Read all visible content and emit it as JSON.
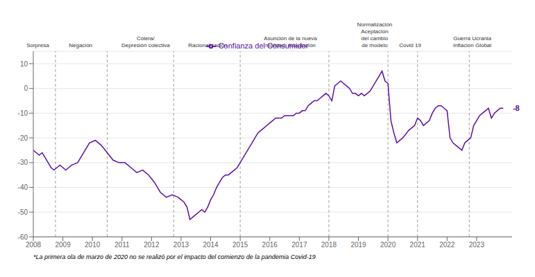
{
  "chart_data": {
    "type": "line",
    "x": [
      2008.0,
      2008.1,
      2008.2,
      2008.3,
      2008.4,
      2008.5,
      2008.6,
      2008.7,
      2008.8,
      2008.9,
      2009.0,
      2009.1,
      2009.2,
      2009.3,
      2009.5,
      2009.7,
      2009.9,
      2010.1,
      2010.3,
      2010.5,
      2010.7,
      2010.9,
      2011.1,
      2011.3,
      2011.5,
      2011.7,
      2011.9,
      2012.1,
      2012.3,
      2012.5,
      2012.7,
      2012.9,
      2013.0,
      2013.1,
      2013.2,
      2013.3,
      2013.4,
      2013.5,
      2013.6,
      2013.7,
      2013.8,
      2013.9,
      2014.0,
      2014.1,
      2014.2,
      2014.3,
      2014.4,
      2014.5,
      2014.6,
      2014.7,
      2014.8,
      2014.9,
      2015.0,
      2015.1,
      2015.2,
      2015.3,
      2015.4,
      2015.5,
      2015.6,
      2015.7,
      2015.8,
      2015.9,
      2016.0,
      2016.1,
      2016.2,
      2016.3,
      2016.4,
      2016.5,
      2016.6,
      2016.7,
      2016.8,
      2016.9,
      2017.0,
      2017.1,
      2017.2,
      2017.3,
      2017.4,
      2017.5,
      2017.6,
      2017.7,
      2017.8,
      2017.9,
      2018.0,
      2018.1,
      2018.2,
      2018.3,
      2018.4,
      2018.5,
      2018.6,
      2018.7,
      2018.8,
      2018.9,
      2019.0,
      2019.1,
      2019.2,
      2019.3,
      2019.4,
      2019.5,
      2019.6,
      2019.7,
      2019.8,
      2019.9,
      2020.0,
      2020.1,
      2020.2,
      2020.3,
      2020.5,
      2020.7,
      2020.9,
      2021.0,
      2021.1,
      2021.2,
      2021.3,
      2021.4,
      2021.5,
      2021.6,
      2021.7,
      2021.8,
      2021.9,
      2022.0,
      2022.1,
      2022.2,
      2022.3,
      2022.4,
      2022.5,
      2022.6,
      2022.7,
      2022.8,
      2022.9,
      2023.0,
      2023.1,
      2023.2,
      2023.3,
      2023.4,
      2023.5,
      2023.6,
      2023.7,
      2023.8,
      2023.9
    ],
    "series": [
      {
        "name": "Confianza del Consumidor",
        "color": "#5B0EA6",
        "values": [
          -25,
          -26,
          -27,
          -26,
          -28,
          -30,
          -32,
          -33,
          -32,
          -31,
          -32,
          -33,
          -32,
          -31,
          -30,
          -26,
          -22,
          -21,
          -23,
          -26,
          -29,
          -30,
          -30,
          -32,
          -34,
          -33,
          -35,
          -38,
          -42,
          -44,
          -43,
          -44,
          -45,
          -46,
          -48,
          -53,
          -52,
          -51,
          -50,
          -49,
          -50,
          -48,
          -45,
          -43,
          -40,
          -38,
          -36,
          -35,
          -35,
          -34,
          -33,
          -32,
          -30,
          -28,
          -26,
          -24,
          -22,
          -20,
          -18,
          -17,
          -16,
          -15,
          -14,
          -13,
          -12,
          -12,
          -12,
          -11,
          -11,
          -11,
          -11,
          -10,
          -10,
          -9,
          -9,
          -7,
          -6,
          -5,
          -5,
          -4,
          -3,
          -2,
          -3,
          -5,
          1,
          2,
          3,
          2,
          1,
          0,
          -2,
          -2,
          -3,
          -2,
          -3,
          -2,
          -1,
          1,
          3,
          5,
          7,
          3,
          2,
          -13,
          -18,
          -22,
          -20,
          -17,
          -15,
          -12,
          -13,
          -15,
          -14,
          -13,
          -10,
          -8,
          -7,
          -7,
          -8,
          -9,
          -20,
          -22,
          -23,
          -24,
          -25,
          -22,
          -21,
          -20,
          -15,
          -13,
          -11,
          -10,
          -9,
          -8,
          -12,
          -10,
          -9,
          -8,
          -8
        ]
      }
    ],
    "xlim": [
      2008,
      2024.2
    ],
    "xticks": [
      2008,
      2009,
      2010,
      2011,
      2012,
      2013,
      2014,
      2015,
      2016,
      2017,
      2018,
      2019,
      2020,
      2021,
      2022,
      2023
    ],
    "ylim": [
      -60,
      15
    ],
    "yticks": [
      -60,
      -50,
      -40,
      -30,
      -20,
      -10,
      0,
      10
    ],
    "grid": true,
    "legend": "top",
    "phase_lines": [
      2008.75,
      2010.5,
      2012.75,
      2015.0,
      2018.0,
      2020.0,
      2021.0,
      2022.75
    ],
    "annotations": [
      {
        "text": "Sorpresa",
        "x": 2008.15
      },
      {
        "text": "Negación",
        "x": 2009.6
      },
      {
        "text": "Cólera/\nDepresión colectiva",
        "x": 2011.8
      },
      {
        "text": "Racionalización",
        "x": 2013.9
      },
      {
        "text": "Asunción de la nueva\nrealidad. Adaptación",
        "x": 2016.7
      },
      {
        "text": "Normalización\nAceptación\ndel cambio\nde modelo",
        "x": 2019.55
      },
      {
        "text": "Covid 19",
        "x": 2020.75
      },
      {
        "text": "Guerra Ucrania\nInflación Global",
        "x": 2022.85
      },
      {
        "text": "-8",
        "x": 2024.08,
        "y": -8
      }
    ],
    "footnote": "*La primera ola de marzo de 2020 no se realizó por el impacto del comienzo de la pandemia Covid-19"
  }
}
